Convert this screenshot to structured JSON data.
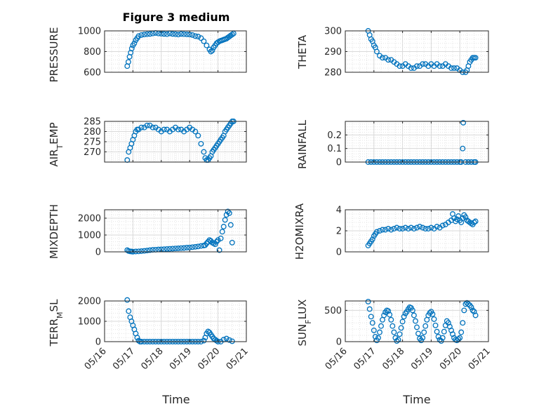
{
  "figure": {
    "title": "Figure 3 medium"
  },
  "chart_data": [
    {
      "type": "scatter",
      "panel": "pressure",
      "ylabel": "PRESSURE",
      "ylabel_sub": "",
      "ylim": [
        600,
        1000
      ],
      "yticks": [
        600,
        800,
        1000
      ],
      "yticklabels": [
        "600",
        "800",
        "1000"
      ],
      "grid": true,
      "marker_color": "#0072BD",
      "x": [
        16.8,
        16.84,
        16.88,
        16.92,
        16.96,
        17.0,
        17.05,
        17.1,
        17.15,
        17.2,
        17.3,
        17.4,
        17.5,
        17.6,
        17.7,
        17.8,
        17.9,
        18.0,
        18.1,
        18.2,
        18.3,
        18.4,
        18.5,
        18.6,
        18.7,
        18.8,
        18.9,
        19.0,
        19.1,
        19.2,
        19.3,
        19.4,
        19.5,
        19.6,
        19.7,
        19.75,
        19.8,
        19.85,
        19.9,
        19.95,
        20.0,
        20.05,
        20.1,
        20.15,
        20.2,
        20.25,
        20.3,
        20.35,
        20.4,
        20.45,
        20.5,
        20.55
      ],
      "y": [
        660,
        700,
        750,
        790,
        830,
        860,
        880,
        910,
        930,
        950,
        960,
        965,
        968,
        970,
        975,
        980,
        975,
        972,
        970,
        968,
        975,
        970,
        968,
        965,
        970,
        968,
        966,
        965,
        960,
        950,
        945,
        930,
        900,
        860,
        820,
        800,
        810,
        840,
        860,
        880,
        890,
        900,
        905,
        910,
        915,
        920,
        925,
        935,
        945,
        955,
        965,
        975
      ]
    },
    {
      "type": "scatter",
      "panel": "theta",
      "ylabel": "THETA",
      "ylabel_sub": "",
      "ylim": [
        280,
        300
      ],
      "yticks": [
        280,
        290,
        300
      ],
      "yticklabels": [
        "280",
        "290",
        "300"
      ],
      "grid": true,
      "marker_color": "#0072BD",
      "x": [
        16.8,
        16.85,
        16.9,
        16.95,
        17.0,
        17.05,
        17.1,
        17.2,
        17.3,
        17.4,
        17.5,
        17.6,
        17.7,
        17.8,
        17.9,
        18.0,
        18.1,
        18.2,
        18.3,
        18.4,
        18.5,
        18.6,
        18.7,
        18.8,
        18.9,
        19.0,
        19.1,
        19.2,
        19.3,
        19.4,
        19.5,
        19.6,
        19.7,
        19.8,
        19.9,
        20.0,
        20.1,
        20.2,
        20.25,
        20.3,
        20.35,
        20.4,
        20.45,
        20.5,
        20.55
      ],
      "y": [
        300,
        298,
        296,
        295,
        293,
        292,
        290,
        288,
        287,
        287,
        286,
        286,
        285,
        284,
        283,
        283,
        284,
        283,
        282,
        282,
        283,
        283,
        284,
        284,
        283,
        284,
        283,
        284,
        283,
        283,
        284,
        283,
        282,
        282,
        282,
        281,
        280,
        280,
        281,
        283,
        285,
        286,
        287,
        287,
        287
      ]
    },
    {
      "type": "scatter",
      "panel": "air_temp",
      "ylabel": "AIR",
      "ylabel_sub": "T",
      "ylabel_tail": "EMP",
      "ylim": [
        265,
        285
      ],
      "yticks": [
        270,
        275,
        280,
        285
      ],
      "yticklabels": [
        "270",
        "275",
        "280",
        "285"
      ],
      "grid": true,
      "marker_color": "#0072BD",
      "x": [
        16.8,
        16.85,
        16.9,
        16.95,
        17.0,
        17.05,
        17.1,
        17.15,
        17.2,
        17.3,
        17.4,
        17.5,
        17.6,
        17.7,
        17.8,
        17.9,
        18.0,
        18.1,
        18.2,
        18.3,
        18.4,
        18.5,
        18.6,
        18.7,
        18.8,
        18.9,
        19.0,
        19.1,
        19.2,
        19.3,
        19.4,
        19.5,
        19.55,
        19.6,
        19.65,
        19.7,
        19.75,
        19.8,
        19.85,
        19.9,
        19.95,
        20.0,
        20.05,
        20.1,
        20.15,
        20.2,
        20.25,
        20.3,
        20.35,
        20.4,
        20.45,
        20.5,
        20.55
      ],
      "y": [
        266,
        270,
        272,
        274,
        276,
        278,
        280,
        281,
        281,
        282,
        282,
        283,
        283,
        282,
        282,
        281,
        280,
        281,
        281,
        280,
        281,
        282,
        281,
        281,
        280,
        281,
        282,
        281,
        280,
        278,
        274,
        270,
        267,
        266,
        266,
        267,
        268,
        270,
        271,
        272,
        273,
        274,
        275,
        276,
        277,
        278,
        280,
        281,
        282,
        283,
        284,
        285,
        285
      ]
    },
    {
      "type": "scatter",
      "panel": "rainfall",
      "ylabel": "RAINFALL",
      "ylabel_sub": "",
      "ylim": [
        0,
        0.3
      ],
      "yticks": [
        0,
        0.1,
        0.2
      ],
      "yticklabels": [
        "0",
        "0.1",
        "0.2"
      ],
      "grid": true,
      "marker_color": "#0072BD",
      "x": [
        16.8,
        16.9,
        17.0,
        17.1,
        17.2,
        17.3,
        17.4,
        17.5,
        17.6,
        17.7,
        17.8,
        17.9,
        18.0,
        18.1,
        18.2,
        18.3,
        18.4,
        18.5,
        18.6,
        18.7,
        18.8,
        18.9,
        19.0,
        19.1,
        19.2,
        19.3,
        19.4,
        19.5,
        19.6,
        19.7,
        19.8,
        19.9,
        20.0,
        20.05,
        20.1,
        20.12,
        20.2,
        20.3,
        20.4,
        20.5,
        20.55
      ],
      "y": [
        0,
        0,
        0,
        0,
        0,
        0,
        0,
        0,
        0,
        0,
        0,
        0,
        0,
        0,
        0,
        0,
        0,
        0,
        0,
        0,
        0,
        0,
        0,
        0,
        0,
        0,
        0,
        0,
        0,
        0,
        0,
        0,
        0,
        0,
        0.1,
        0.29,
        0,
        0,
        0,
        0,
        0
      ]
    },
    {
      "type": "scatter",
      "panel": "mixdepth",
      "ylabel": "MIXDEPTH",
      "ylabel_sub": "",
      "ylim": [
        0,
        2500
      ],
      "yticks": [
        0,
        1000,
        2000
      ],
      "yticklabels": [
        "0",
        "1000",
        "2000"
      ],
      "grid": true,
      "marker_color": "#0072BD",
      "x": [
        16.8,
        16.85,
        16.9,
        16.95,
        17.0,
        17.1,
        17.2,
        17.3,
        17.4,
        17.5,
        17.6,
        17.7,
        17.8,
        17.9,
        18.0,
        18.1,
        18.2,
        18.3,
        18.4,
        18.5,
        18.6,
        18.7,
        18.8,
        18.9,
        19.0,
        19.1,
        19.2,
        19.3,
        19.4,
        19.5,
        19.55,
        19.6,
        19.65,
        19.7,
        19.75,
        19.8,
        19.85,
        19.9,
        19.95,
        20.0,
        20.05,
        20.1,
        20.15,
        20.2,
        20.25,
        20.3,
        20.35,
        20.4,
        20.45,
        20.5
      ],
      "y": [
        100,
        50,
        30,
        20,
        10,
        20,
        30,
        40,
        60,
        80,
        100,
        120,
        130,
        140,
        150,
        160,
        170,
        180,
        190,
        200,
        210,
        220,
        230,
        250,
        260,
        280,
        300,
        320,
        350,
        380,
        400,
        500,
        600,
        700,
        650,
        550,
        500,
        450,
        600,
        700,
        100,
        800,
        1200,
        1500,
        1900,
        2200,
        2400,
        2300,
        1600,
        550
      ]
    },
    {
      "type": "scatter",
      "panel": "h2omixra",
      "ylabel": "H2OMIXRA",
      "ylabel_sub": "",
      "ylim": [
        0,
        4
      ],
      "yticks": [
        0,
        2,
        4
      ],
      "yticklabels": [
        "0",
        "2",
        "4"
      ],
      "grid": true,
      "marker_color": "#0072BD",
      "x": [
        16.8,
        16.85,
        16.9,
        16.95,
        17.0,
        17.05,
        17.1,
        17.2,
        17.3,
        17.4,
        17.5,
        17.6,
        17.7,
        17.8,
        17.9,
        18.0,
        18.1,
        18.2,
        18.3,
        18.4,
        18.5,
        18.6,
        18.7,
        18.8,
        18.9,
        19.0,
        19.1,
        19.2,
        19.3,
        19.4,
        19.5,
        19.6,
        19.7,
        19.75,
        19.8,
        19.85,
        19.9,
        19.95,
        20.0,
        20.05,
        20.1,
        20.15,
        20.2,
        20.25,
        20.3,
        20.35,
        20.4,
        20.45,
        20.5,
        20.55
      ],
      "y": [
        0.6,
        0.8,
        1.0,
        1.2,
        1.5,
        1.7,
        1.9,
        2.0,
        2.1,
        2.1,
        2.2,
        2.1,
        2.2,
        2.3,
        2.2,
        2.2,
        2.3,
        2.2,
        2.3,
        2.2,
        2.3,
        2.4,
        2.3,
        2.2,
        2.2,
        2.3,
        2.2,
        2.4,
        2.3,
        2.5,
        2.6,
        2.8,
        3.0,
        3.6,
        3.2,
        2.9,
        3.1,
        3.4,
        3.0,
        2.8,
        3.2,
        3.5,
        3.3,
        3.0,
        2.9,
        2.8,
        2.7,
        2.6,
        2.8,
        2.9
      ]
    },
    {
      "type": "scatter",
      "panel": "terrmsl",
      "ylabel": "TERR",
      "ylabel_sub": "M",
      "ylabel_tail": "SL",
      "ylim": [
        0,
        2000
      ],
      "yticks": [
        0,
        1000,
        2000
      ],
      "yticklabels": [
        "0",
        "1000",
        "2000"
      ],
      "grid": true,
      "marker_color": "#0072BD",
      "x": [
        16.8,
        16.85,
        16.9,
        16.95,
        17.0,
        17.05,
        17.1,
        17.15,
        17.2,
        17.25,
        17.3,
        17.4,
        17.5,
        17.6,
        17.7,
        17.8,
        17.9,
        18.0,
        18.1,
        18.2,
        18.3,
        18.4,
        18.5,
        18.6,
        18.7,
        18.8,
        18.9,
        19.0,
        19.1,
        19.2,
        19.3,
        19.4,
        19.5,
        19.55,
        19.6,
        19.65,
        19.7,
        19.75,
        19.8,
        19.85,
        19.9,
        19.95,
        20.0,
        20.1,
        20.2,
        20.3,
        20.4,
        20.5
      ],
      "y": [
        2050,
        1500,
        1200,
        1000,
        800,
        600,
        400,
        200,
        50,
        0,
        0,
        0,
        0,
        0,
        0,
        0,
        0,
        0,
        0,
        0,
        0,
        0,
        0,
        0,
        0,
        0,
        0,
        0,
        0,
        0,
        0,
        0,
        50,
        200,
        400,
        500,
        450,
        350,
        250,
        150,
        100,
        50,
        0,
        0,
        100,
        150,
        80,
        20
      ]
    },
    {
      "type": "scatter",
      "panel": "sunflux",
      "ylabel": "SUN",
      "ylabel_sub": "F",
      "ylabel_tail": "LUX",
      "ylim": [
        0,
        650
      ],
      "yticks": [
        0,
        500
      ],
      "yticklabels": [
        "0",
        "500"
      ],
      "grid": true,
      "marker_color": "#0072BD",
      "x": [
        16.8,
        16.85,
        16.9,
        16.95,
        17.0,
        17.05,
        17.1,
        17.15,
        17.2,
        17.25,
        17.3,
        17.35,
        17.4,
        17.45,
        17.5,
        17.55,
        17.6,
        17.65,
        17.7,
        17.75,
        17.8,
        17.85,
        17.9,
        17.95,
        18.0,
        18.05,
        18.1,
        18.15,
        18.2,
        18.25,
        18.3,
        18.35,
        18.4,
        18.45,
        18.5,
        18.55,
        18.6,
        18.65,
        18.7,
        18.75,
        18.8,
        18.85,
        18.9,
        18.95,
        19.0,
        19.05,
        19.1,
        19.15,
        19.2,
        19.25,
        19.3,
        19.35,
        19.4,
        19.45,
        19.5,
        19.55,
        19.6,
        19.65,
        19.7,
        19.75,
        19.8,
        19.85,
        19.9,
        19.95,
        20.0,
        20.05,
        20.1,
        20.15,
        20.2,
        20.25,
        20.3,
        20.35,
        20.4,
        20.45,
        20.5,
        20.55
      ],
      "y": [
        640,
        520,
        400,
        300,
        180,
        80,
        20,
        60,
        150,
        250,
        350,
        420,
        470,
        500,
        490,
        430,
        350,
        250,
        150,
        60,
        10,
        30,
        120,
        220,
        320,
        400,
        450,
        480,
        520,
        550,
        540,
        500,
        420,
        330,
        230,
        130,
        50,
        20,
        60,
        150,
        250,
        350,
        420,
        460,
        480,
        440,
        360,
        260,
        160,
        80,
        30,
        10,
        60,
        160,
        260,
        330,
        300,
        240,
        180,
        120,
        60,
        30,
        20,
        40,
        60,
        150,
        300,
        500,
        600,
        620,
        600,
        580,
        550,
        500,
        480,
        420
      ]
    }
  ],
  "xaxis": {
    "xlim": [
      16,
      21
    ],
    "ticks": [
      16,
      17,
      18,
      19,
      20,
      21
    ],
    "ticklabels": [
      "05/16",
      "05/17",
      "05/18",
      "05/19",
      "05/20",
      "05/21"
    ],
    "xlabel": "Time"
  }
}
